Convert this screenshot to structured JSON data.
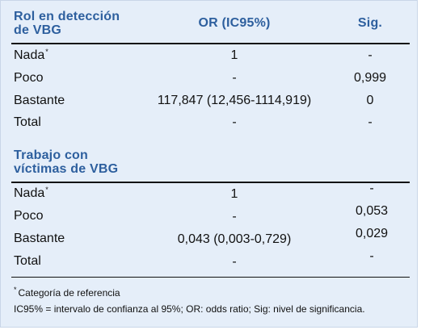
{
  "header": {
    "col1_line1": "Rol en detección",
    "col1_line2": "de VBG",
    "col2": "OR (IC95%)",
    "col3": "Sig."
  },
  "section1": {
    "rows": [
      {
        "label": "Nada",
        "ref": "*",
        "or": "1",
        "sig": "-"
      },
      {
        "label": "Poco",
        "ref": "",
        "or": "-",
        "sig": "0,999"
      },
      {
        "label": "Bastante",
        "ref": "",
        "or": "117,847 (12,456-1114,919)",
        "sig": "0"
      },
      {
        "label": "Total",
        "ref": "",
        "or": "-",
        "sig": "-"
      }
    ]
  },
  "section2": {
    "title_line1": "Trabajo con",
    "title_line2": "víctimas de VBG",
    "rows": [
      {
        "label": "Nada",
        "ref": "*",
        "or": "1",
        "sig": "-"
      },
      {
        "label": "Poco",
        "ref": "",
        "or": "-",
        "sig": "0,053"
      },
      {
        "label": "Bastante",
        "ref": "",
        "or": "0,043 (0,003-0,729)",
        "sig": "0,029"
      },
      {
        "label": "Total",
        "ref": "",
        "or": "-",
        "sig": "-"
      }
    ]
  },
  "footnotes": {
    "marker": "*",
    "note1": "Categoría de referencia",
    "note2": "IC95% = intervalo de confianza al 95%; OR: odds ratio; Sig: nivel de significancia."
  }
}
